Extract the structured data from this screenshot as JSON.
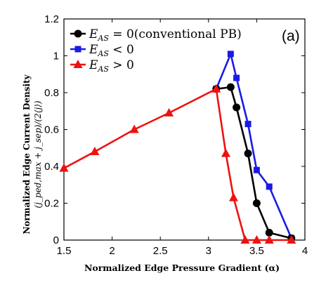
{
  "panel_label": "(a)",
  "chart_data": {
    "type": "line",
    "xlabel": "Normalized Edge Pressure Gradient (α)",
    "ylabel_lines": [
      "Normalized Edge Current Density",
      "(j_ped,max + j_sep)/(2⟨j⟩)"
    ],
    "xlim": [
      1.5,
      4
    ],
    "ylim": [
      0,
      1.2
    ],
    "xticks": [
      1.5,
      2,
      2.5,
      3,
      3.5,
      4
    ],
    "yticks": [
      0,
      0.2,
      0.4,
      0.6,
      0.8,
      1,
      1.2
    ],
    "xtick_labels": [
      "1.5",
      "2",
      "2.5",
      "3",
      "3.5",
      "4"
    ],
    "ytick_labels": [
      "0",
      "0.2",
      "0.4",
      "0.6",
      "0.8",
      "1",
      "1.2"
    ],
    "grid": false,
    "legend_position": "top-right",
    "series": [
      {
        "name": "E_AS = 0(conventional PB)",
        "legend_math": "E",
        "legend_sub": "AS",
        "legend_rest": " = 0(conventional PB)",
        "color": "#000000",
        "marker": "circle",
        "x": [
          3.08,
          3.23,
          3.29,
          3.41,
          3.5,
          3.63,
          3.86
        ],
        "y": [
          0.82,
          0.83,
          0.72,
          0.47,
          0.2,
          0.04,
          0.01
        ]
      },
      {
        "name": "E_AS < 0",
        "legend_math": "E",
        "legend_sub": "AS",
        "legend_rest": " < 0",
        "color": "#1a1ae6",
        "marker": "square",
        "x": [
          3.08,
          3.23,
          3.29,
          3.41,
          3.5,
          3.63,
          3.86
        ],
        "y": [
          0.82,
          1.01,
          0.88,
          0.63,
          0.38,
          0.29,
          0.01
        ]
      },
      {
        "name": "E_AS > 0",
        "legend_math": "E",
        "legend_sub": "AS",
        "legend_rest": " > 0",
        "color": "#ee1111",
        "marker": "triangle",
        "x": [
          1.5,
          1.82,
          2.23,
          2.59,
          3.08,
          3.18,
          3.26,
          3.38,
          3.5,
          3.63,
          3.86
        ],
        "y": [
          0.39,
          0.48,
          0.6,
          0.69,
          0.82,
          0.47,
          0.23,
          0.0,
          0.0,
          0.0,
          0.0
        ]
      }
    ]
  }
}
